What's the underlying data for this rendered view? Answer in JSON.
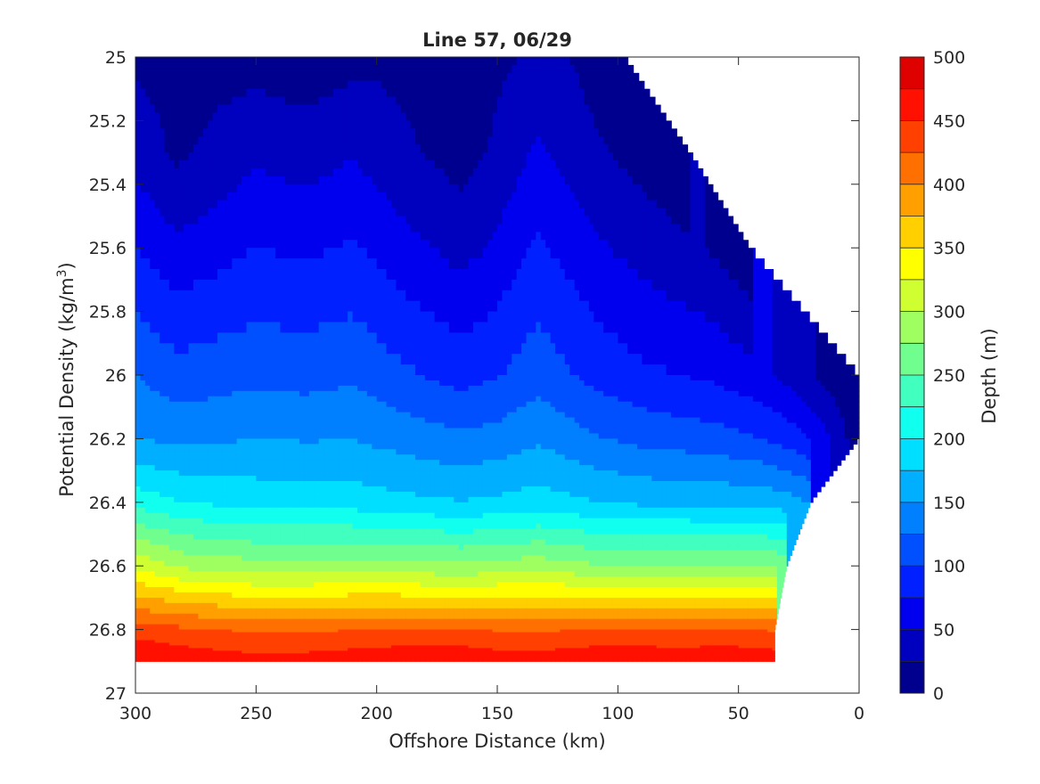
{
  "chart_data": {
    "type": "filled-contour",
    "title": "Line 57, 06/29",
    "xlabel": "Offshore Distance (km)",
    "ylabel": "Potential Density (kg/m",
    "ylabel_sup": "3",
    "ylabel_close": ")",
    "colorbar_label": "Depth (m)",
    "colormap": "jet",
    "xlim": [
      300,
      0
    ],
    "x_reversed": true,
    "ylim": [
      25,
      27
    ],
    "y_reversed": true,
    "x_ticks": [
      300,
      250,
      200,
      150,
      100,
      50,
      0
    ],
    "x_tick_labels": [
      "300",
      "250",
      "200",
      "150",
      "100",
      "50",
      "0"
    ],
    "y_ticks": [
      25,
      25.2,
      25.4,
      25.6,
      25.8,
      26,
      26.2,
      26.4,
      26.6,
      26.8,
      27
    ],
    "y_tick_labels": [
      "25",
      "25.2",
      "25.4",
      "25.6",
      "25.8",
      "26",
      "26.2",
      "26.4",
      "26.6",
      "26.8",
      "27"
    ],
    "levels": [
      0,
      25,
      50,
      75,
      100,
      125,
      150,
      175,
      200,
      225,
      250,
      275,
      300,
      325,
      350,
      375,
      400,
      425,
      450,
      475,
      500
    ],
    "colorbar_ticks": [
      0,
      50,
      100,
      150,
      200,
      250,
      300,
      350,
      400,
      450,
      500
    ],
    "colorbar_tick_labels": [
      "0",
      "50",
      "100",
      "150",
      "200",
      "250",
      "300",
      "350",
      "400",
      "450",
      "500"
    ],
    "level_colors": [
      "#00008f",
      "#0000bf",
      "#0000ef",
      "#0020ff",
      "#0050ff",
      "#0080ff",
      "#00afff",
      "#00dfff",
      "#10ffef",
      "#40ffbf",
      "#70ff8f",
      "#9fff60",
      "#cfff30",
      "#ffff00",
      "#ffcf00",
      "#ff9f00",
      "#ff7000",
      "#ff4000",
      "#ff1000",
      "#df0000",
      "#af0000"
    ],
    "data_max_density": 26.9,
    "data_rows": [
      {
        "density": 25.0,
        "points": [
          [
            300,
            20
          ],
          [
            280,
            15
          ],
          [
            250,
            15
          ],
          [
            230,
            10
          ],
          [
            200,
            20
          ],
          [
            170,
            15
          ],
          [
            165,
            5
          ],
          [
            150,
            20
          ],
          [
            130,
            30
          ],
          [
            120,
            25
          ],
          [
            100,
            5
          ],
          [
            97,
            2
          ]
        ]
      },
      {
        "density": 25.3,
        "points": [
          [
            300,
            40
          ],
          [
            283,
            20
          ],
          [
            250,
            45
          ],
          [
            230,
            38
          ],
          [
            210,
            48
          ],
          [
            190,
            30
          ],
          [
            165,
            15
          ],
          [
            150,
            30
          ],
          [
            133,
            55
          ],
          [
            110,
            30
          ],
          [
            90,
            15
          ],
          [
            75,
            5
          ],
          [
            70,
            2
          ]
        ]
      },
      {
        "density": 25.6,
        "points": [
          [
            300,
            75
          ],
          [
            283,
            55
          ],
          [
            250,
            75
          ],
          [
            230,
            70
          ],
          [
            210,
            78
          ],
          [
            190,
            60
          ],
          [
            165,
            40
          ],
          [
            150,
            55
          ],
          [
            133,
            80
          ],
          [
            110,
            55
          ],
          [
            90,
            40
          ],
          [
            65,
            25
          ],
          [
            50,
            10
          ],
          [
            45,
            2
          ]
        ]
      },
      {
        "density": 26.0,
        "points": [
          [
            300,
            125
          ],
          [
            283,
            110
          ],
          [
            250,
            118
          ],
          [
            230,
            115
          ],
          [
            210,
            120
          ],
          [
            190,
            105
          ],
          [
            165,
            90
          ],
          [
            150,
            98
          ],
          [
            133,
            115
          ],
          [
            110,
            92
          ],
          [
            90,
            80
          ],
          [
            60,
            70
          ],
          [
            40,
            55
          ],
          [
            25,
            35
          ],
          [
            10,
            10
          ],
          [
            0,
            2
          ]
        ]
      },
      {
        "density": 26.2,
        "points": [
          [
            300,
            150
          ],
          [
            280,
            143
          ],
          [
            250,
            150
          ],
          [
            230,
            148
          ],
          [
            210,
            149
          ],
          [
            190,
            140
          ],
          [
            165,
            130
          ],
          [
            150,
            135
          ],
          [
            133,
            146
          ],
          [
            110,
            128
          ],
          [
            90,
            118
          ],
          [
            60,
            110
          ],
          [
            40,
            100
          ],
          [
            25,
            85
          ],
          [
            10,
            45
          ],
          [
            5,
            25
          ],
          [
            0,
            15
          ]
        ]
      },
      {
        "density": 26.4,
        "points": [
          [
            300,
            215
          ],
          [
            280,
            200
          ],
          [
            250,
            190
          ],
          [
            230,
            190
          ],
          [
            210,
            188
          ],
          [
            190,
            182
          ],
          [
            165,
            176
          ],
          [
            150,
            180
          ],
          [
            133,
            186
          ],
          [
            110,
            176
          ],
          [
            90,
            170
          ],
          [
            60,
            168
          ],
          [
            40,
            166
          ],
          [
            30,
            160
          ],
          [
            20,
            150
          ]
        ]
      },
      {
        "density": 26.6,
        "points": [
          [
            300,
            320
          ],
          [
            280,
            295
          ],
          [
            250,
            285
          ],
          [
            230,
            285
          ],
          [
            210,
            287
          ],
          [
            190,
            284
          ],
          [
            165,
            280
          ],
          [
            150,
            285
          ],
          [
            133,
            290
          ],
          [
            110,
            278
          ],
          [
            90,
            276
          ],
          [
            60,
            276
          ],
          [
            40,
            276
          ],
          [
            30,
            272
          ]
        ]
      },
      {
        "density": 26.8,
        "points": [
          [
            300,
            440
          ],
          [
            280,
            430
          ],
          [
            250,
            420
          ],
          [
            230,
            420
          ],
          [
            210,
            425
          ],
          [
            190,
            428
          ],
          [
            165,
            428
          ],
          [
            150,
            422
          ],
          [
            133,
            420
          ],
          [
            110,
            428
          ],
          [
            90,
            430
          ],
          [
            75,
            425
          ],
          [
            60,
            430
          ],
          [
            40,
            425
          ],
          [
            35,
            420
          ]
        ]
      },
      {
        "density": 26.9,
        "points": [
          [
            300,
            475
          ],
          [
            280,
            468
          ],
          [
            250,
            460
          ],
          [
            230,
            462
          ],
          [
            210,
            466
          ],
          [
            190,
            470
          ],
          [
            165,
            470
          ],
          [
            150,
            466
          ],
          [
            133,
            465
          ],
          [
            110,
            470
          ],
          [
            90,
            470
          ],
          [
            75,
            466
          ],
          [
            60,
            470
          ],
          [
            40,
            468
          ],
          [
            35,
            466
          ]
        ]
      }
    ]
  }
}
